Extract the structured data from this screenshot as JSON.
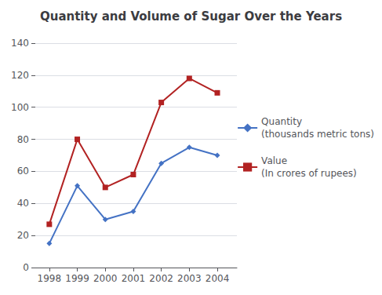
{
  "chart_data": {
    "type": "line",
    "title": "Quantity and Volume of Sugar Over the Years",
    "x": [
      1998,
      1999,
      2000,
      2001,
      2002,
      2003,
      2004
    ],
    "xlim": [
      1997.5,
      2004.7
    ],
    "xticks": [
      1998,
      1999,
      2000,
      2001,
      2002,
      2003,
      2004
    ],
    "ylim": [
      0,
      140
    ],
    "yticks": [
      0,
      20,
      40,
      60,
      80,
      100,
      120,
      140
    ],
    "grid": true,
    "legend": "right",
    "series": [
      {
        "name": "Quantity\n(thousands metric tons)",
        "color": "#4472C4",
        "marker": "diamond",
        "values": [
          15,
          51,
          30,
          35,
          65,
          75,
          70
        ]
      },
      {
        "name": "Value\n(In crores of rupees)",
        "color": "#B22222",
        "marker": "square",
        "values": [
          27,
          80,
          50,
          58,
          103,
          118,
          109
        ]
      }
    ]
  }
}
